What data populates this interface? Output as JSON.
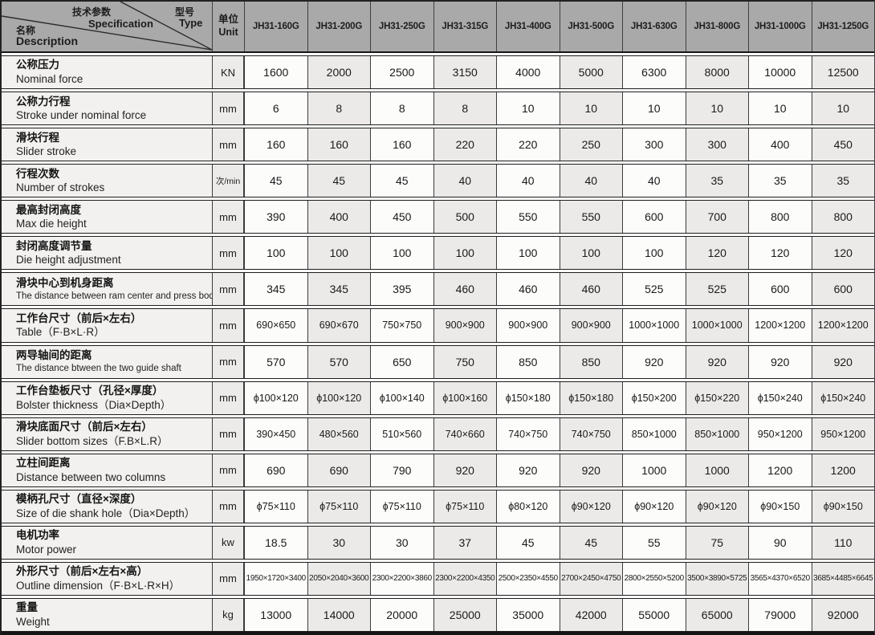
{
  "header": {
    "corner": {
      "spec_zh": "技术参数",
      "spec_en": "Specification",
      "type_zh": "型号",
      "type_en": "Type",
      "desc_zh": "名称",
      "desc_en": "Description"
    },
    "unit": {
      "zh": "单位",
      "en": "Unit"
    },
    "models": [
      "JH31-160G",
      "JH31-200G",
      "JH31-250G",
      "JH31-315G",
      "JH31-400G",
      "JH31-500G",
      "JH31-630G",
      "JH31-800G",
      "JH31-1000G",
      "JH31-1250G"
    ]
  },
  "rows": [
    {
      "zh": "公称压力",
      "en": "Nominal force",
      "unit": "KN",
      "values": [
        "1600",
        "2000",
        "2500",
        "3150",
        "4000",
        "5000",
        "6300",
        "8000",
        "10000",
        "12500"
      ]
    },
    {
      "zh": "公称力行程",
      "en": "Stroke under nominal force",
      "unit": "mm",
      "values": [
        "6",
        "8",
        "8",
        "8",
        "10",
        "10",
        "10",
        "10",
        "10",
        "10"
      ]
    },
    {
      "zh": "滑块行程",
      "en": "Slider stroke",
      "unit": "mm",
      "values": [
        "160",
        "160",
        "160",
        "220",
        "220",
        "250",
        "300",
        "300",
        "400",
        "450"
      ]
    },
    {
      "zh": "行程次数",
      "en": "Number of strokes",
      "unit": "次/min",
      "values": [
        "45",
        "45",
        "45",
        "40",
        "40",
        "40",
        "40",
        "35",
        "35",
        "35"
      ]
    },
    {
      "zh": "最高封闭高度",
      "en": "Max die height",
      "unit": "mm",
      "values": [
        "390",
        "400",
        "450",
        "500",
        "550",
        "550",
        "600",
        "700",
        "800",
        "800"
      ]
    },
    {
      "zh": "封闭高度调节量",
      "en": "Die height adjustment",
      "unit": "mm",
      "values": [
        "100",
        "100",
        "100",
        "100",
        "100",
        "100",
        "100",
        "120",
        "120",
        "120"
      ]
    },
    {
      "zh": "滑块中心到机身距离",
      "en": "The distance between ram center and press body",
      "unit": "mm",
      "values": [
        "345",
        "345",
        "395",
        "460",
        "460",
        "460",
        "525",
        "525",
        "600",
        "600"
      ]
    },
    {
      "zh": "工作台尺寸（前后×左右）",
      "en": "Table（F·B×L·R）",
      "unit": "mm",
      "values": [
        "690×650",
        "690×670",
        "750×750",
        "900×900",
        "900×900",
        "900×900",
        "1000×1000",
        "1000×1000",
        "1200×1200",
        "1200×1200"
      ]
    },
    {
      "zh": "两导轴间的距离",
      "en": "The distance btween the two guide shaft",
      "unit": "mm",
      "values": [
        "570",
        "570",
        "650",
        "750",
        "850",
        "850",
        "920",
        "920",
        "920",
        "920"
      ]
    },
    {
      "zh": "工作台垫板尺寸（孔径×厚度）",
      "en": "Bolster thickness（Dia×Depth）",
      "unit": "mm",
      "values": [
        "ϕ100×120",
        "ϕ100×120",
        "ϕ100×140",
        "ϕ100×160",
        "ϕ150×180",
        "ϕ150×180",
        "ϕ150×200",
        "ϕ150×220",
        "ϕ150×240",
        "ϕ150×240"
      ]
    },
    {
      "zh": "滑块底面尺寸（前后×左右）",
      "en": "Slider bottom sizes（F.B×L.R）",
      "unit": "mm",
      "values": [
        "390×450",
        "480×560",
        "510×560",
        "740×660",
        "740×750",
        "740×750",
        "850×1000",
        "850×1000",
        "950×1200",
        "950×1200"
      ]
    },
    {
      "zh": "立柱间距离",
      "en": "Distance between two columns",
      "unit": "mm",
      "values": [
        "690",
        "690",
        "790",
        "920",
        "920",
        "920",
        "1000",
        "1000",
        "1200",
        "1200"
      ]
    },
    {
      "zh": "模柄孔尺寸（直径×深度）",
      "en": "Size of die shank hole（Dia×Depth）",
      "unit": "mm",
      "values": [
        "ϕ75×110",
        "ϕ75×110",
        "ϕ75×110",
        "ϕ75×110",
        "ϕ80×120",
        "ϕ90×120",
        "ϕ90×120",
        "ϕ90×120",
        "ϕ90×150",
        "ϕ90×150"
      ]
    },
    {
      "zh": "电机功率",
      "en": "Motor power",
      "unit": "kw",
      "values": [
        "18.5",
        "30",
        "30",
        "37",
        "45",
        "45",
        "55",
        "75",
        "90",
        "110"
      ]
    },
    {
      "zh": "外形尺寸（前后×左右×高）",
      "en": "Outline dimension（F·B×L·R×H）",
      "unit": "mm",
      "values": [
        "1950×1720×3400",
        "2050×2040×3600",
        "2300×2200×3860",
        "2300×2200×4350",
        "2500×2350×4550",
        "2700×2450×4750",
        "2800×2550×5200",
        "3500×3890×5725",
        "3565×4370×6520",
        "3685×4485×6645"
      ]
    },
    {
      "zh": "重量",
      "en": "Weight",
      "unit": "kg",
      "values": [
        "13000",
        "14000",
        "20000",
        "25000",
        "35000",
        "42000",
        "55000",
        "65000",
        "79000",
        "92000"
      ]
    }
  ],
  "colors": {
    "header_bg": "#a9a9a9",
    "label_bg": "#f2f1ef",
    "unit_bg": "#ecebe9",
    "cell_white": "#fcfcfb",
    "cell_shaded": "#ebeae8",
    "border": "#1d1d1d"
  }
}
